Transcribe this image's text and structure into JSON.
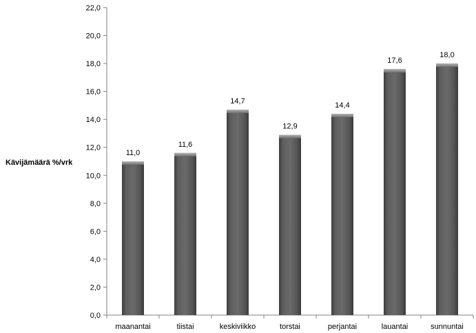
{
  "chart_data": {
    "type": "bar",
    "categories": [
      "maanantai",
      "tiistai",
      "keskiviikko",
      "torstai",
      "perjantai",
      "lauantai",
      "sunnuntai"
    ],
    "values": [
      11.0,
      11.6,
      14.7,
      12.9,
      14.4,
      17.6,
      18.0
    ],
    "value_labels": [
      "11,0",
      "11,6",
      "14,7",
      "12,9",
      "14,4",
      "17,6",
      "18,0"
    ],
    "title": "",
    "xlabel": "",
    "ylabel": "Kävijämäärä  %/vrk",
    "ylim": [
      0,
      22
    ],
    "yticks": [
      0,
      2,
      4,
      6,
      8,
      10,
      12,
      14,
      16,
      18,
      20,
      22
    ],
    "ytick_labels": [
      "0,0",
      "2,0",
      "4,0",
      "6,0",
      "8,0",
      "10,0",
      "12,0",
      "14,0",
      "16,0",
      "18,0",
      "20,0",
      "22,0"
    ],
    "grid": false,
    "legend": "none",
    "colors": {
      "bar": "#5a5a5a",
      "bar_top": "#8c8c8c",
      "axis": "#808080"
    }
  }
}
